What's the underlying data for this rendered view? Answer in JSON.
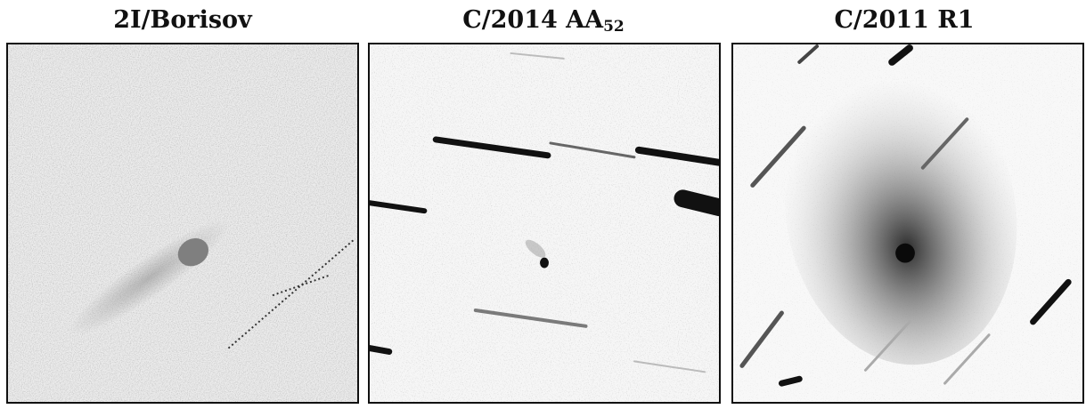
{
  "panels": [
    {
      "title": "2I/Borisov"
    },
    {
      "title_main": "C/2014 AA",
      "title_sub": "52"
    },
    {
      "title": "C/2011 R1"
    }
  ],
  "colors": {
    "background": "#ffffff",
    "sky": "#e9e9e9",
    "ink": "#111111"
  }
}
